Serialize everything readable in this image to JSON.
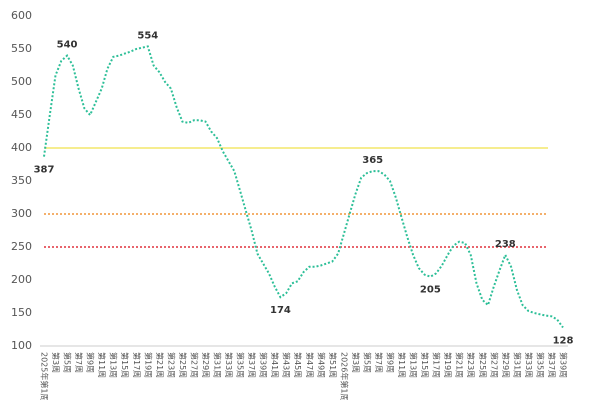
{
  "chart_data": {
    "type": "line",
    "categories": [
      "2025年第1周",
      null,
      "第3周",
      null,
      "第5周",
      null,
      "第7周",
      null,
      "第9周",
      null,
      "第11周",
      null,
      "第13周",
      null,
      "第15周",
      null,
      "第17周",
      null,
      "第19周",
      null,
      "第21周",
      null,
      "第23周",
      null,
      "第25周",
      null,
      "第27周",
      null,
      "第29周",
      null,
      "第31周",
      null,
      "第33周",
      null,
      "第35周",
      null,
      "第37周",
      null,
      "第39周",
      null,
      "第41周",
      null,
      "第43周",
      null,
      "第45周",
      null,
      "第47周",
      null,
      "第49周",
      null,
      "第51周",
      null,
      "2026年第1周",
      null,
      "第3周",
      null,
      "第5周",
      null,
      "第7周",
      null,
      "第9周",
      null,
      "第11周",
      null,
      "第13周",
      null,
      "第15周",
      null,
      "第17周",
      null,
      "第19周",
      null,
      "第21周",
      null,
      "第23周",
      null,
      "第25周",
      null,
      "第27周",
      null,
      "第29周",
      null,
      "第31周",
      null,
      "第33周",
      null,
      "第35周",
      null,
      "第37周",
      null,
      "第39周"
    ],
    "series": [
      {
        "color": "#2dbf98",
        "values": [
          387,
          450,
          510,
          532,
          540,
          525,
          490,
          460,
          450,
          470,
          490,
          520,
          538,
          540,
          543,
          546,
          550,
          552,
          554,
          525,
          515,
          500,
          490,
          462,
          440,
          438,
          442,
          442,
          440,
          425,
          415,
          395,
          380,
          365,
          335,
          305,
          275,
          240,
          225,
          210,
          190,
          174,
          180,
          195,
          198,
          212,
          220,
          220,
          222,
          225,
          228,
          240,
          270,
          300,
          330,
          355,
          362,
          365,
          365,
          360,
          350,
          325,
          295,
          265,
          238,
          218,
          208,
          205,
          210,
          222,
          238,
          252,
          258,
          256,
          238,
          195,
          170,
          162,
          190,
          215,
          238,
          220,
          185,
          162,
          153,
          150,
          148,
          146,
          145,
          140,
          128
        ],
        "value_labels": [
          "387",
          null,
          null,
          null,
          "540",
          null,
          null,
          null,
          null,
          null,
          null,
          null,
          null,
          null,
          null,
          null,
          null,
          null,
          "554",
          null,
          null,
          null,
          null,
          null,
          null,
          null,
          null,
          null,
          null,
          null,
          null,
          null,
          null,
          null,
          null,
          null,
          null,
          null,
          null,
          null,
          null,
          "174",
          null,
          null,
          null,
          null,
          null,
          null,
          null,
          null,
          null,
          null,
          null,
          null,
          null,
          null,
          null,
          "365",
          null,
          null,
          null,
          null,
          null,
          null,
          null,
          null,
          null,
          "205",
          null,
          null,
          null,
          null,
          null,
          null,
          null,
          null,
          null,
          null,
          null,
          null,
          "238",
          null,
          null,
          null,
          null,
          null,
          null,
          null,
          null,
          null,
          "128"
        ]
      }
    ],
    "ref_lines": [
      {
        "value": 400,
        "color": "#f3e76a",
        "style": "solid"
      },
      {
        "value": 300,
        "color": "#f0953a",
        "style": "dotted"
      },
      {
        "value": 250,
        "color": "#e0313b",
        "style": "dotted"
      }
    ],
    "ylim": [
      100,
      600
    ],
    "yticks": [
      100,
      150,
      200,
      250,
      300,
      350,
      400,
      450,
      500,
      550,
      600
    ]
  }
}
